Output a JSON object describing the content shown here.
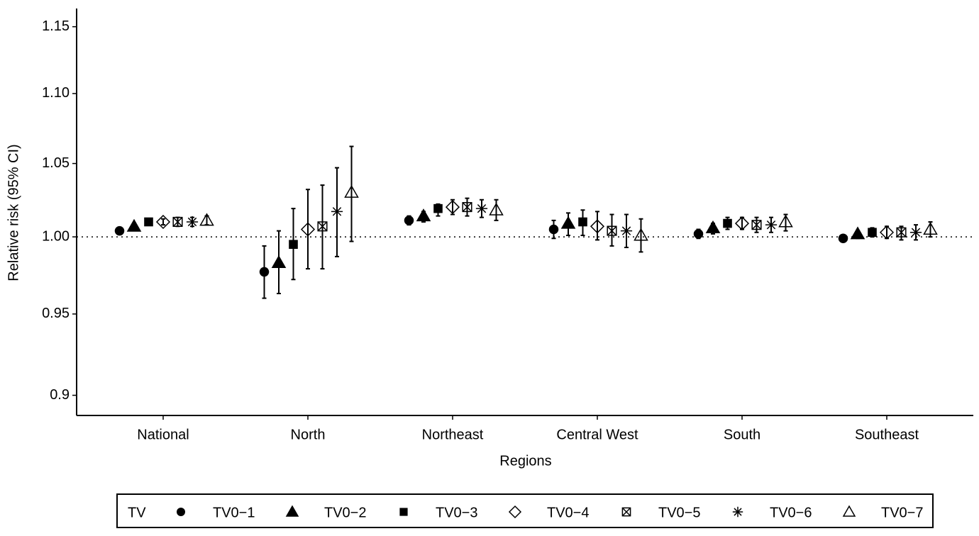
{
  "chart_data": {
    "type": "dot_errorbar",
    "x_label": "Regions",
    "y_label": "Relative risk (95% CI)",
    "categories": [
      "National",
      "North",
      "Northeast",
      "Central West",
      "South",
      "Southeast"
    ],
    "log_scale": true,
    "ylim": [
      0.888,
      1.164
    ],
    "yticks": [
      0.9,
      {
        "value": 0.95,
        "label": "0.95"
      },
      {
        "value": 1.0,
        "label": "1.00"
      },
      {
        "value": 1.05,
        "label": "1.05"
      },
      {
        "value": 1.1,
        "label": "1.10"
      },
      {
        "value": 1.15,
        "label": "1.15"
      }
    ],
    "hline": 1,
    "legend_title": "TV",
    "legend_position": "bottom",
    "series": [
      {
        "name": "TV0−1",
        "marker": "circle",
        "color": "#000",
        "values": [
          1.004,
          0.977,
          1.011,
          1.005,
          1.002,
          0.999
        ],
        "lower": [
          1.002,
          0.96,
          1.008,
          0.999,
          0.999,
          0.998
        ],
        "upper": [
          1.006,
          0.994,
          1.014,
          1.011,
          1.005,
          1.001
        ]
      },
      {
        "name": "TV0−2",
        "marker": "triangle",
        "color": "#000",
        "values": [
          1.007,
          0.983,
          1.014,
          1.009,
          1.006,
          1.002
        ],
        "lower": [
          1.005,
          0.963,
          1.01,
          1.001,
          1.002,
          0.999
        ],
        "upper": [
          1.009,
          1.004,
          1.017,
          1.016,
          1.009,
          1.004
        ]
      },
      {
        "name": "TV0−3",
        "marker": "square",
        "color": "#000",
        "values": [
          1.01,
          0.995,
          1.019,
          1.01,
          1.009,
          1.003
        ],
        "lower": [
          1.008,
          0.972,
          1.014,
          1.001,
          1.005,
          1.0
        ],
        "upper": [
          1.012,
          1.019,
          1.022,
          1.018,
          1.013,
          1.006
        ]
      },
      {
        "name": "TV0−4",
        "marker": "diamond",
        "color": "#000",
        "values": [
          1.01,
          1.005,
          1.02,
          1.007,
          1.009,
          1.003
        ],
        "lower": [
          1.008,
          0.979,
          1.015,
          0.998,
          1.005,
          0.999
        ],
        "upper": [
          1.012,
          1.032,
          1.025,
          1.017,
          1.013,
          1.007
        ]
      },
      {
        "name": "TV0−5",
        "marker": "boxx",
        "color": "#000",
        "values": [
          1.01,
          1.007,
          1.02,
          1.004,
          1.008,
          1.003
        ],
        "lower": [
          1.007,
          0.979,
          1.014,
          0.994,
          1.003,
          0.998
        ],
        "upper": [
          1.013,
          1.035,
          1.026,
          1.015,
          1.013,
          1.007
        ]
      },
      {
        "name": "TV0−6",
        "marker": "asterisk",
        "color": "#000",
        "values": [
          1.01,
          1.017,
          1.019,
          1.004,
          1.008,
          1.003
        ],
        "lower": [
          1.007,
          0.987,
          1.013,
          0.993,
          1.003,
          0.998
        ],
        "upper": [
          1.013,
          1.047,
          1.025,
          1.015,
          1.013,
          1.008
        ]
      },
      {
        "name": "TV0−7",
        "marker": "open-triangle",
        "color": "#000",
        "values": [
          1.011,
          1.03,
          1.018,
          1.001,
          1.01,
          1.005
        ],
        "lower": [
          1.008,
          0.997,
          1.011,
          0.99,
          1.004,
          1.0
        ],
        "upper": [
          1.014,
          1.062,
          1.025,
          1.012,
          1.015,
          1.01
        ]
      }
    ]
  }
}
